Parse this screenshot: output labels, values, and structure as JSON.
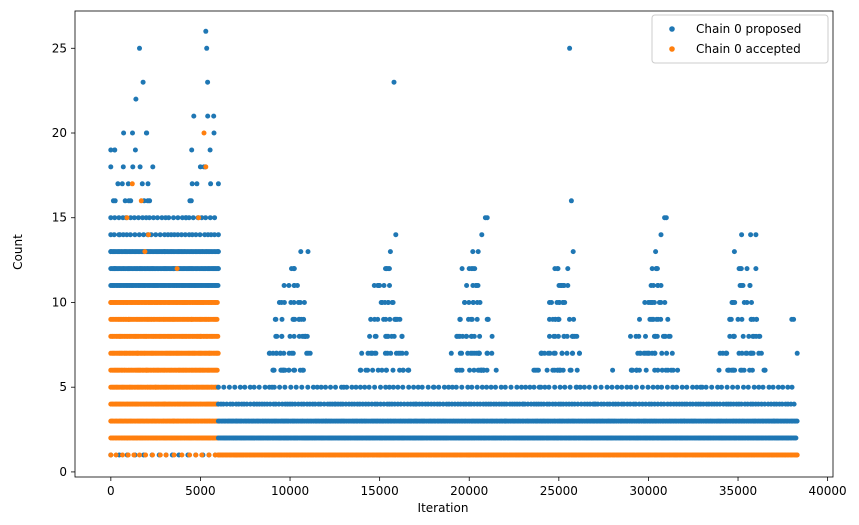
{
  "chart_data": {
    "type": "scatter",
    "xlabel": "Iteration",
    "ylabel": "Count",
    "xlim": [
      -2000,
      40300
    ],
    "ylim": [
      -0.3,
      27.2
    ],
    "xticks": [
      0,
      5000,
      10000,
      15000,
      20000,
      25000,
      30000,
      35000,
      40000
    ],
    "yticks": [
      0,
      5,
      10,
      15,
      20,
      25
    ],
    "grid": false,
    "legend_position": "top-right",
    "total_iterations": 38300,
    "legend": [
      "Chain 0 proposed",
      "Chain 0 accepted"
    ],
    "series": [
      {
        "name": "Chain 0 proposed",
        "color": "#1f77b4",
        "x": [
          0,
          0,
          0,
          6000,
          6000,
          6000,
          6000,
          7000,
          8000,
          9000,
          9500,
          10000,
          10500,
          11000,
          12000,
          12500,
          13000,
          14000,
          14500,
          15000,
          15500,
          15800,
          15900,
          16000,
          17000,
          18000,
          19000,
          19500,
          20000,
          20500,
          21000,
          22000,
          23000,
          24000,
          24500,
          25000,
          25500,
          25600,
          25700,
          25800,
          26000,
          27000,
          28000,
          29000,
          30000,
          30500,
          31000,
          32000,
          33000,
          34000,
          35000,
          35500,
          36000,
          37000,
          38000,
          38300,
          800,
          1400,
          1600,
          1800,
          5300,
          5350,
          5400,
          5000,
          4200,
          4800,
          2000,
          3000,
          3500,
          1000,
          500,
          200,
          10200,
          10600,
          10800,
          14700,
          15400,
          15600,
          19600,
          20200,
          20700,
          20900,
          24900,
          25300,
          25500,
          29800,
          30400,
          30700,
          30900,
          34800,
          35200,
          35700,
          36000,
          38100
        ],
        "y": [
          13,
          19,
          18,
          17,
          12,
          13,
          14,
          3,
          4,
          5,
          6,
          8,
          9,
          13,
          3,
          4,
          5,
          7,
          9,
          11,
          12,
          23,
          14,
          9,
          4,
          5,
          7,
          9,
          12,
          13,
          15,
          3,
          4,
          5,
          7,
          9,
          11,
          25,
          16,
          13,
          5,
          4,
          6,
          8,
          10,
          12,
          15,
          3,
          5,
          7,
          9,
          12,
          14,
          3,
          9,
          7,
          16,
          22,
          25,
          23,
          26,
          25,
          23,
          18,
          15,
          17,
          20,
          13,
          12,
          16,
          14,
          12,
          12,
          13,
          10,
          11,
          12,
          13,
          12,
          13,
          14,
          15,
          10,
          11,
          12,
          10,
          13,
          14,
          15,
          13,
          14,
          14,
          12,
          9
        ]
      },
      {
        "name": "Chain 0 accepted",
        "color": "#ff7f0e",
        "x": [
          0,
          500,
          1000,
          1500,
          2000,
          2500,
          3000,
          3500,
          4000,
          4500,
          5000,
          5500,
          6000,
          7000,
          10000,
          15000,
          20000,
          25000,
          30000,
          35000,
          38300,
          1200,
          1700,
          5200,
          5300,
          4900,
          2100,
          900,
          1900,
          3700
        ],
        "y": [
          10,
          8,
          9,
          7,
          6,
          5,
          4,
          3,
          10,
          9,
          8,
          7,
          1,
          1,
          1,
          1,
          1,
          1,
          1,
          1,
          1,
          17,
          16,
          20,
          18,
          15,
          14,
          15,
          13,
          12
        ]
      }
    ]
  }
}
